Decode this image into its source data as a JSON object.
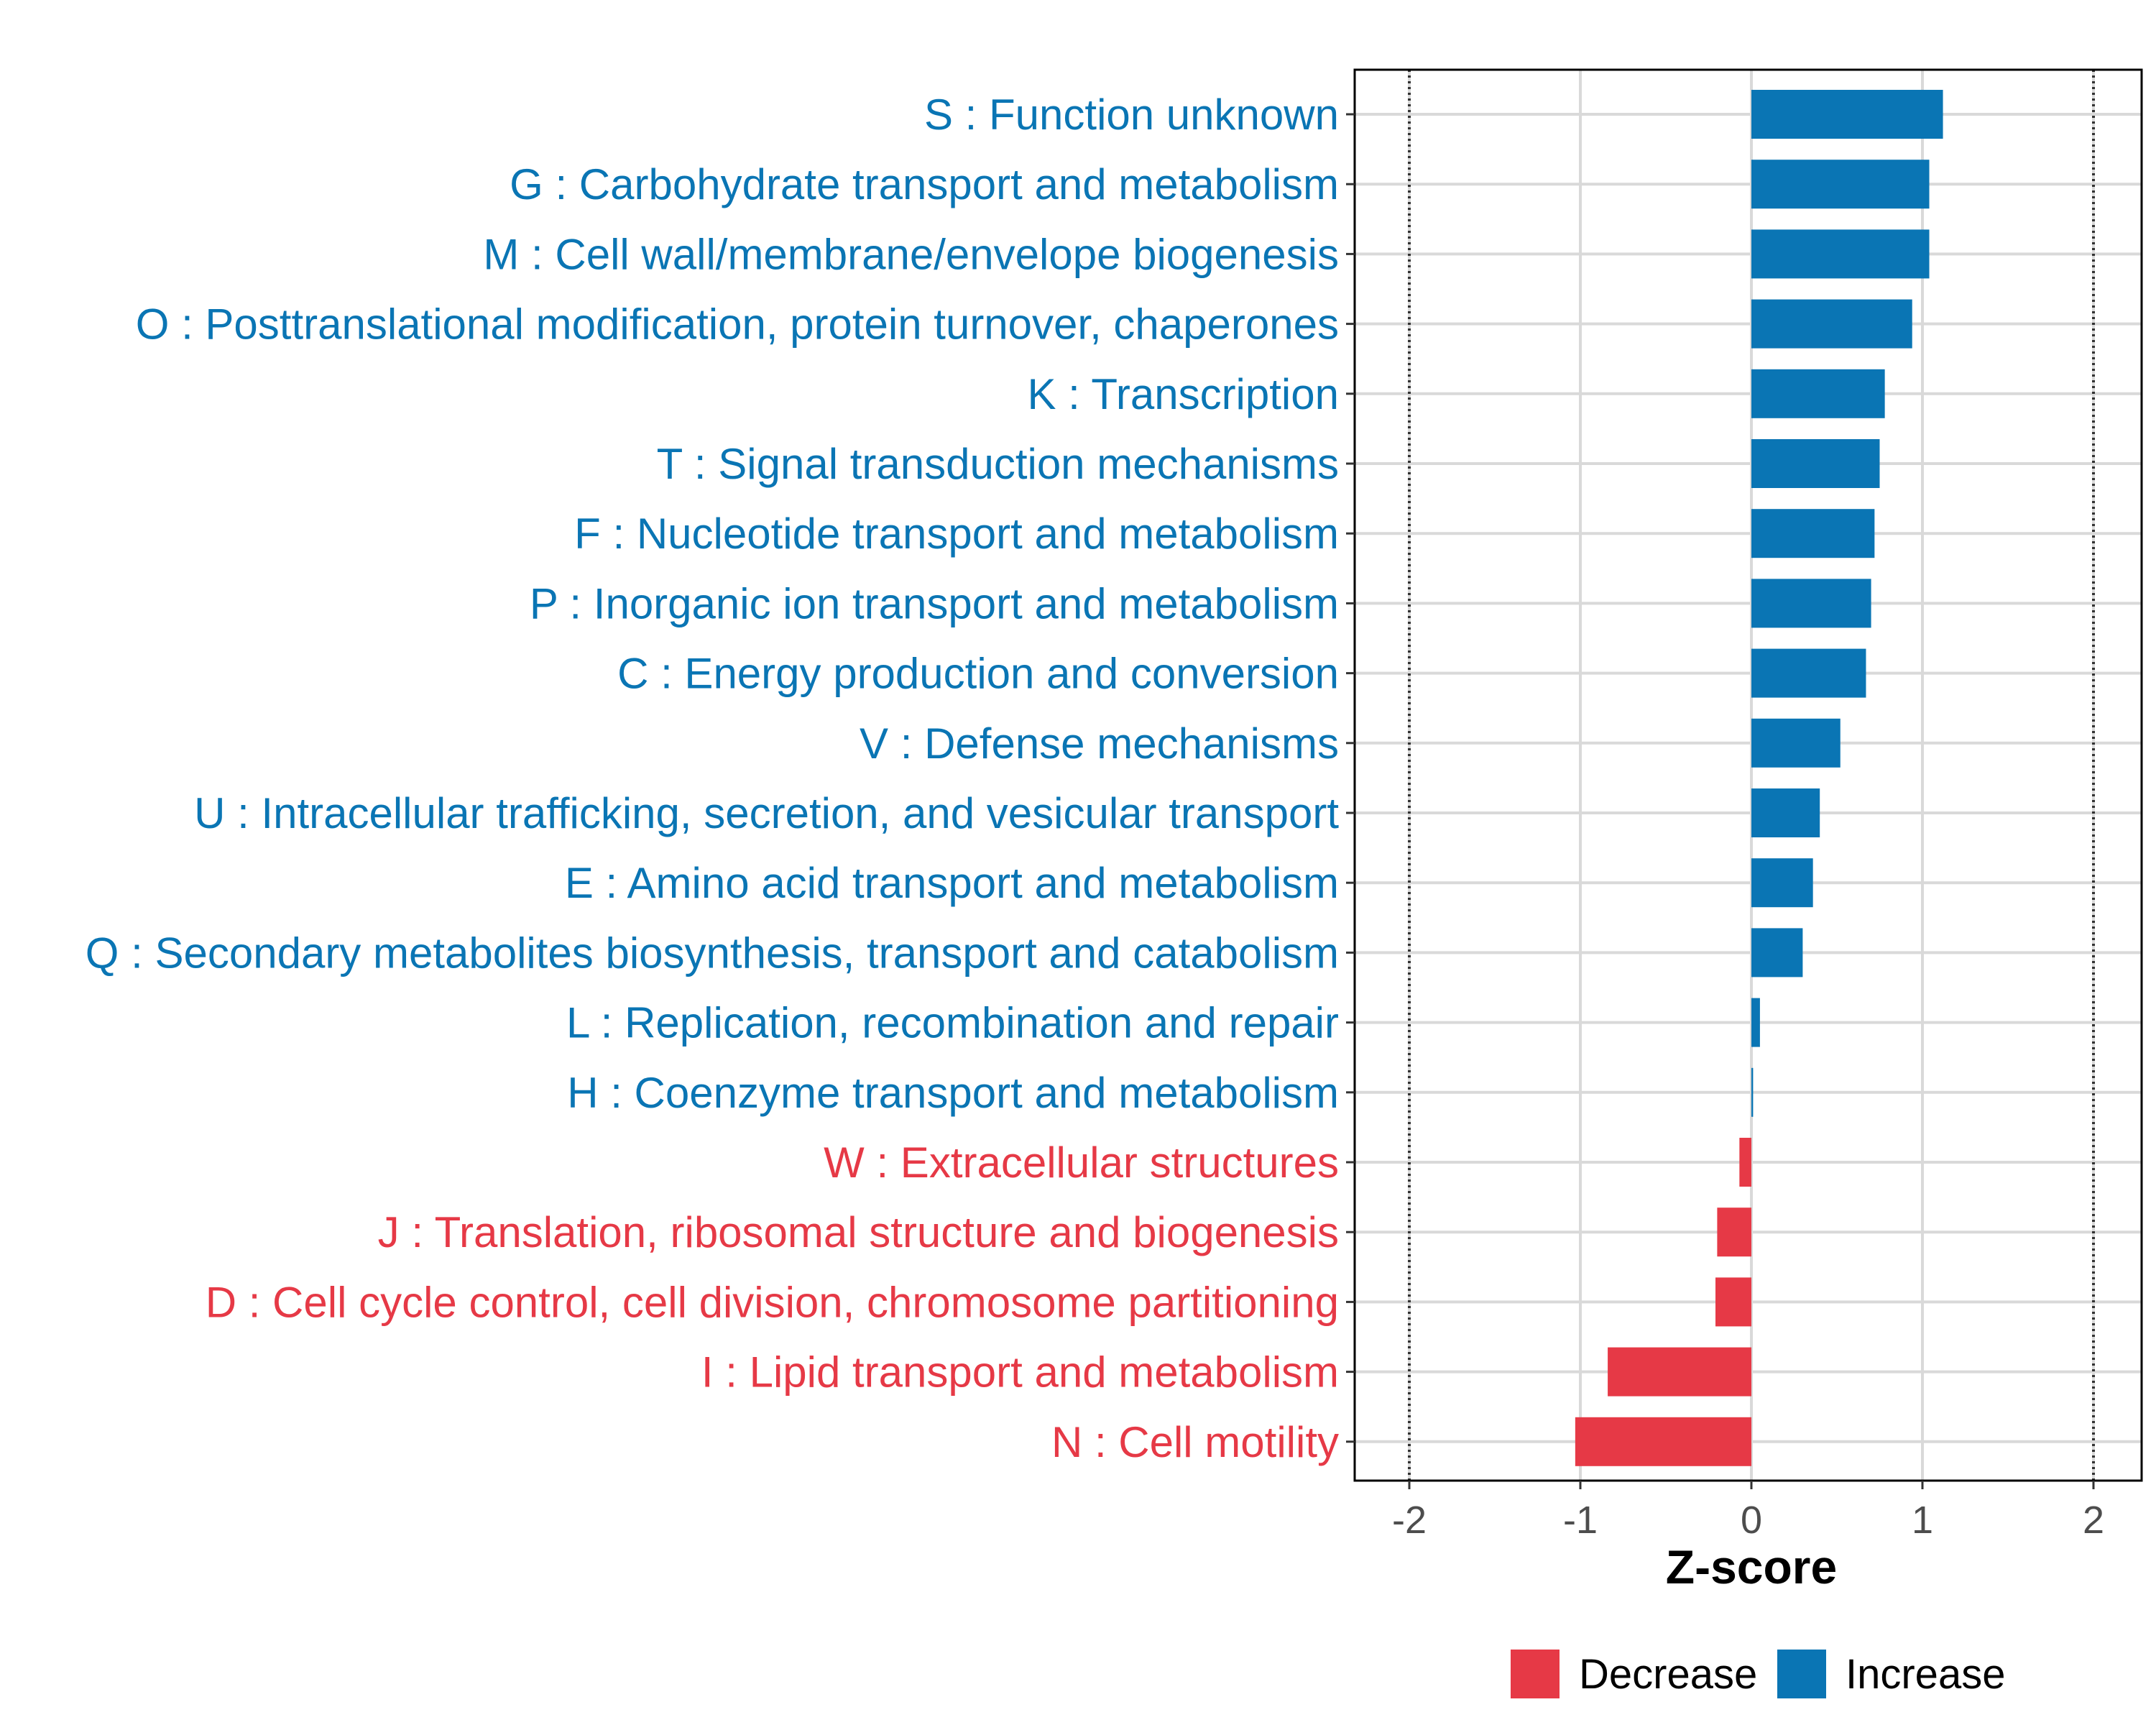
{
  "chart_data": {
    "type": "bar",
    "orientation": "horizontal",
    "xlabel": "Z-score",
    "ylabel": "",
    "xlim": [
      -2.3,
      2.3
    ],
    "x_ticks": [
      -2,
      -1,
      0,
      1,
      2
    ],
    "x_tick_labels": [
      "-2",
      "-1",
      "0",
      "1",
      "2"
    ],
    "reference_lines": [
      -2,
      2
    ],
    "grid": true,
    "legend_position": "bottom",
    "colors": {
      "Increase": "#0a75b4",
      "Decrease": "#e63946"
    },
    "legend": [
      {
        "label": "Decrease",
        "color": "#e63946"
      },
      {
        "label": "Increase",
        "color": "#0a75b4"
      }
    ],
    "categories": [
      "S : Function unknown",
      "G : Carbohydrate transport and metabolism",
      "M : Cell wall/membrane/envelope biogenesis",
      "O : Posttranslational modification, protein turnover, chaperones",
      "K : Transcription",
      "T : Signal transduction mechanisms",
      "F : Nucleotide transport and metabolism",
      "P : Inorganic ion transport and metabolism",
      "C : Energy production and conversion",
      "V : Defense mechanisms",
      "U : Intracellular trafficking, secretion, and vesicular transport",
      "E : Amino acid transport and metabolism",
      "Q : Secondary metabolites biosynthesis, transport and catabolism",
      "L : Replication, recombination and repair",
      "H : Coenzyme transport and metabolism",
      "W : Extracellular structures",
      "J : Translation, ribosomal structure and biogenesis",
      "D : Cell cycle control, cell division, chromosome partitioning",
      "I : Lipid transport and metabolism",
      "N : Cell motility"
    ],
    "values": [
      1.12,
      1.04,
      1.04,
      0.94,
      0.78,
      0.75,
      0.72,
      0.7,
      0.67,
      0.52,
      0.4,
      0.36,
      0.3,
      0.05,
      0.01,
      -0.07,
      -0.2,
      -0.21,
      -0.84,
      -1.03
    ],
    "direction": [
      "Increase",
      "Increase",
      "Increase",
      "Increase",
      "Increase",
      "Increase",
      "Increase",
      "Increase",
      "Increase",
      "Increase",
      "Increase",
      "Increase",
      "Increase",
      "Increase",
      "Increase",
      "Decrease",
      "Decrease",
      "Decrease",
      "Decrease",
      "Decrease"
    ]
  }
}
